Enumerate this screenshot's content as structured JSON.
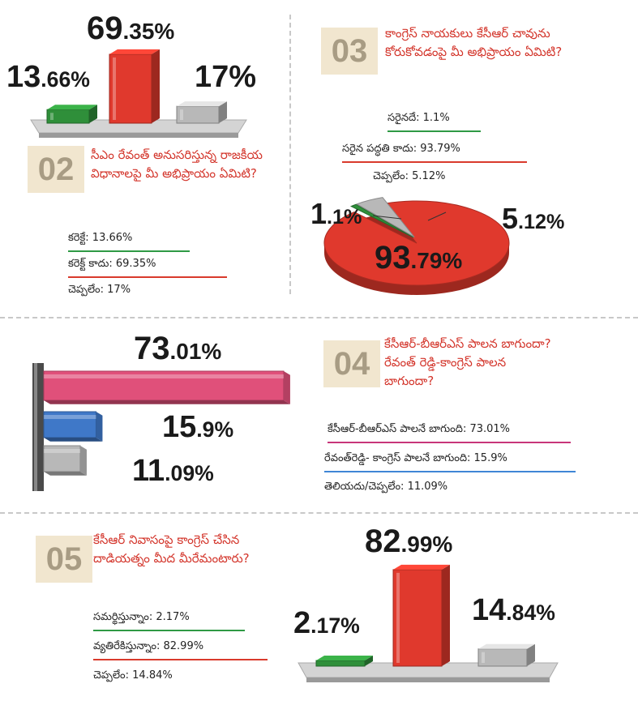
{
  "colors": {
    "green": "#2f8f3a",
    "red": "#e0392d",
    "grey": "#b8b8b8",
    "pink": "#e0507a",
    "blue": "#3f78c8",
    "question": "#d3342a",
    "line_green": "#2f9a45",
    "line_red": "#d93a2c",
    "line_pink": "#c8357a",
    "line_blue": "#3f86d6"
  },
  "q02": {
    "number": "02",
    "question": "సీఎం రేవంత్ అనుసరిస్తున్న రాజకీయ విధానాలపై మీ అభిప్రాయం ఏమిటి?",
    "answers": [
      "కరెక్టే: 13.66%",
      "కరెక్ట్ కాదు: 69.35%",
      "చెప్పలేం: 17%"
    ]
  },
  "q03": {
    "number": "03",
    "question": "కాంగ్రెస్ నాయకులు కేసీఆర్ చావును కోరుకోవడంపై మీ అభిప్రాయం ఏమిటి?",
    "answers": [
      "సరైనదే: 1.1%",
      "సరైన పద్ధతి కాదు: 93.79%",
      "చెప్పలేం: 5.12%"
    ]
  },
  "q04": {
    "number": "04",
    "question": "కేసీఆర్-బీఆర్ఎస్ పాలన బాగుందా? రేవంత్ రెడ్డి-కాంగ్రెస్ పాలన బాగుందా?",
    "answers": [
      "కేసీఆర్-బీఆర్ఎస్ పాలనే బాగుంది: 73.01%",
      "రేవంత్‌రెడ్డి- కాంగ్రెస్ పాలనే బాగుంది: 15.9%",
      "తెలియదు/చెప్పలేం: 11.09%"
    ]
  },
  "q05": {
    "number": "05",
    "question": "కేసీఆర్ నివాసంపై కాంగ్రెస్ చేసిన దాడియత్నం మీద మీరేమంటారు?",
    "answers": [
      "సమర్థిస్తున్నాం: 2.17%",
      "వ్యతిరేకిస్తున్నాం: 82.99%",
      "చెప్పలేం: 14.84%"
    ]
  },
  "chart_data": [
    {
      "type": "bar",
      "id": "q02",
      "values": [
        13.66,
        69.35,
        17
      ],
      "labels": [
        "13.66%",
        "69.35%",
        "17%"
      ],
      "colors": [
        "green",
        "red",
        "grey"
      ]
    },
    {
      "type": "pie",
      "id": "q03",
      "values": [
        93.79,
        1.1,
        5.12
      ],
      "labels": [
        "93.79%",
        "1.1%",
        "5.12%"
      ],
      "colors": [
        "red",
        "green",
        "grey"
      ]
    },
    {
      "type": "bar",
      "id": "q04",
      "orientation": "horizontal",
      "values": [
        73.01,
        15.9,
        11.09
      ],
      "labels": [
        "73.01%",
        "15.9%",
        "11.09%"
      ],
      "colors": [
        "pink",
        "blue",
        "grey"
      ]
    },
    {
      "type": "bar",
      "id": "q05",
      "values": [
        2.17,
        82.99,
        14.84
      ],
      "labels": [
        "2.17%",
        "82.99%",
        "14.84%"
      ],
      "colors": [
        "green",
        "red",
        "grey"
      ]
    }
  ]
}
